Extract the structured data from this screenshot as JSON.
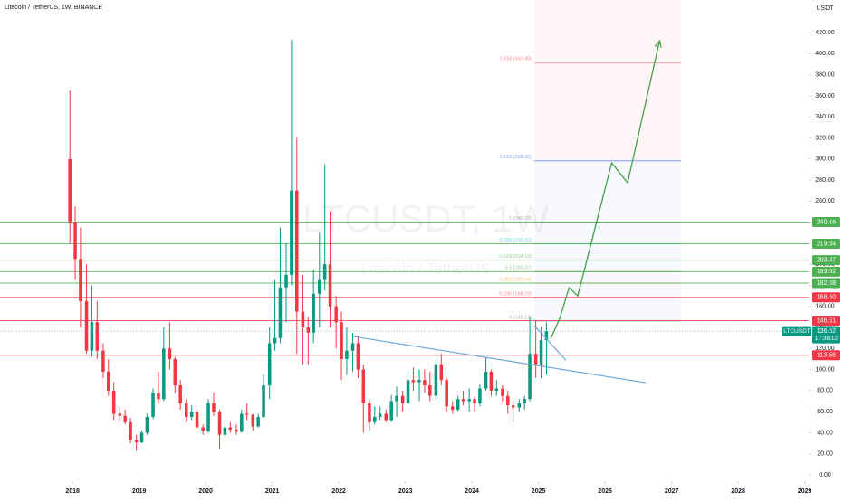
{
  "chart_data": {
    "type": "candlestick",
    "title": "Litecoin / TetherUS, 1W, BINANCE",
    "currency": "USDT",
    "watermark": "LTCUSDT, 1W",
    "watermark_subtitle": "Litecoin / TetherUS",
    "up_color": "#089981",
    "down_color": "#f23645",
    "x": [
      2017.96,
      2018.04,
      2018.12,
      2018.21,
      2018.29,
      2018.37,
      2018.46,
      2018.54,
      2018.62,
      2018.71,
      2018.79,
      2018.87,
      2018.96,
      2019.04,
      2019.12,
      2019.21,
      2019.29,
      2019.37,
      2019.46,
      2019.54,
      2019.62,
      2019.71,
      2019.79,
      2019.87,
      2019.96,
      2020.04,
      2020.12,
      2020.21,
      2020.29,
      2020.37,
      2020.46,
      2020.54,
      2020.62,
      2020.71,
      2020.79,
      2020.87,
      2020.96,
      2021.04,
      2021.12,
      2021.21,
      2021.29,
      2021.37,
      2021.46,
      2021.54,
      2021.62,
      2021.71,
      2021.79,
      2021.87,
      2021.96,
      2022.04,
      2022.12,
      2022.21,
      2022.29,
      2022.37,
      2022.46,
      2022.54,
      2022.62,
      2022.71,
      2022.79,
      2022.87,
      2022.96,
      2023.04,
      2023.12,
      2023.21,
      2023.29,
      2023.37,
      2023.46,
      2023.54,
      2023.62,
      2023.71,
      2023.79,
      2023.87,
      2023.96,
      2024.04,
      2024.12,
      2024.21,
      2024.29,
      2024.37,
      2024.46,
      2024.54,
      2024.62,
      2024.71,
      2024.79,
      2024.87,
      2024.96,
      2025.04,
      2025.12
    ],
    "open": [
      300,
      240,
      205,
      165,
      118,
      145,
      118,
      98,
      80,
      58,
      56,
      50,
      33,
      31,
      40,
      55,
      78,
      72,
      120,
      110,
      85,
      68,
      55,
      60,
      45,
      42,
      68,
      60,
      38,
      45,
      43,
      41,
      58,
      57,
      46,
      55,
      85,
      125,
      130,
      178,
      190,
      270,
      155,
      140,
      135,
      172,
      185,
      200,
      160,
      145,
      110,
      118,
      125,
      100,
      68,
      50,
      55,
      58,
      52,
      70,
      75,
      68,
      90,
      88,
      90,
      85,
      75,
      105,
      90,
      65,
      62,
      72,
      70,
      72,
      68,
      82,
      98,
      80,
      82,
      75,
      66,
      64,
      68,
      72,
      115,
      105,
      128
    ],
    "high": [
      365,
      255,
      235,
      200,
      180,
      165,
      125,
      110,
      88,
      65,
      62,
      54,
      38,
      42,
      58,
      82,
      98,
      140,
      145,
      112,
      90,
      72,
      66,
      62,
      48,
      72,
      78,
      62,
      52,
      50,
      48,
      62,
      68,
      58,
      58,
      95,
      140,
      185,
      235,
      220,
      413,
      320,
      190,
      150,
      195,
      230,
      295,
      250,
      170,
      155,
      140,
      135,
      132,
      105,
      72,
      65,
      65,
      62,
      76,
      84,
      80,
      98,
      102,
      100,
      100,
      98,
      110,
      115,
      92,
      70,
      75,
      80,
      82,
      74,
      86,
      112,
      100,
      90,
      85,
      80,
      70,
      72,
      75,
      150,
      147,
      141,
      145
    ],
    "low": [
      220,
      185,
      140,
      115,
      112,
      110,
      92,
      75,
      52,
      50,
      48,
      30,
      23,
      30,
      38,
      53,
      68,
      70,
      100,
      78,
      62,
      50,
      52,
      40,
      38,
      40,
      56,
      25,
      35,
      40,
      38,
      40,
      52,
      42,
      45,
      54,
      72,
      118,
      125,
      145,
      180,
      115,
      105,
      105,
      125,
      140,
      175,
      140,
      120,
      90,
      95,
      98,
      92,
      40,
      42,
      48,
      52,
      50,
      50,
      55,
      60,
      66,
      80,
      70,
      78,
      70,
      72,
      85,
      60,
      58,
      60,
      66,
      60,
      60,
      65,
      80,
      75,
      75,
      70,
      58,
      50,
      60,
      62,
      70,
      92,
      92,
      95
    ],
    "close": [
      240,
      205,
      165,
      118,
      145,
      118,
      98,
      80,
      58,
      56,
      50,
      33,
      31,
      40,
      55,
      78,
      72,
      120,
      110,
      85,
      68,
      55,
      60,
      45,
      42,
      68,
      60,
      38,
      45,
      43,
      41,
      58,
      57,
      46,
      55,
      85,
      125,
      130,
      178,
      190,
      270,
      155,
      140,
      135,
      172,
      185,
      200,
      160,
      145,
      110,
      118,
      125,
      100,
      68,
      50,
      55,
      58,
      52,
      70,
      75,
      68,
      90,
      88,
      90,
      85,
      75,
      105,
      90,
      65,
      62,
      72,
      70,
      72,
      68,
      82,
      98,
      80,
      82,
      75,
      66,
      64,
      68,
      72,
      115,
      105,
      128,
      136.52
    ],
    "xlim": [
      2016.91,
      2029.06
    ],
    "xticks": [
      2018,
      2019,
      2020,
      2021,
      2022,
      2023,
      2024,
      2025,
      2026,
      2027,
      2028,
      2029
    ],
    "ylim": [
      -6,
      451
    ],
    "yticks": [
      {
        "value": 0,
        "label": "0.00"
      },
      {
        "value": 20,
        "label": "20.00"
      },
      {
        "value": 40,
        "label": "40.00"
      },
      {
        "value": 60,
        "label": "60.00"
      },
      {
        "value": 80,
        "label": "80.00"
      },
      {
        "value": 100,
        "label": "100.00"
      },
      {
        "value": 120,
        "label": "120.00"
      },
      {
        "value": 140,
        "label": "140.00"
      },
      {
        "value": 160,
        "label": "160.00"
      },
      {
        "value": 180,
        "label": "180.00"
      },
      {
        "value": 200,
        "label": "200.00"
      },
      {
        "value": 220,
        "label": "220.00"
      },
      {
        "value": 240,
        "label": "240.00"
      },
      {
        "value": 260,
        "label": "260.00"
      },
      {
        "value": 280,
        "label": "280.00"
      },
      {
        "value": 300,
        "label": "300.00"
      },
      {
        "value": 320,
        "label": "320.00"
      },
      {
        "value": 340,
        "label": "340.00"
      },
      {
        "value": 360,
        "label": "360.00"
      },
      {
        "value": 380,
        "label": "380.00"
      },
      {
        "value": 400,
        "label": "400.00"
      },
      {
        "value": 420,
        "label": "420.00"
      }
    ],
    "levels": [
      {
        "value": 240.16,
        "label": "240.16",
        "color": "#4caf50"
      },
      {
        "value": 219.54,
        "label": "219.54",
        "color": "#4caf50"
      },
      {
        "value": 203.87,
        "label": "203.87",
        "color": "#4caf50"
      },
      {
        "value": 193.02,
        "label": "193.02",
        "color": "#4caf50"
      },
      {
        "value": 182.08,
        "label": "182.08",
        "color": "#4caf50"
      },
      {
        "value": 168.6,
        "label": "168.60",
        "color": "#f23645"
      },
      {
        "value": 146.51,
        "label": "146.51",
        "color": "#f23645"
      },
      {
        "value": 113.58,
        "label": "113.58",
        "color": "#f23645"
      }
    ],
    "fib_start": 2024.94,
    "fib_end": 2027.14,
    "fib_levels": [
      {
        "value": 391.49,
        "label": "2.618 (391.49)",
        "color": "#f23645"
      },
      {
        "value": 298.32,
        "label": "1.618 (298.32)",
        "color": "#2962ff"
      },
      {
        "value": 240.13,
        "label": "1 (240.13)",
        "color": "#787b86"
      },
      {
        "value": 219.43,
        "label": "0.786 (219.43)",
        "color": "#00bcd4"
      },
      {
        "value": 204.18,
        "label": "0.618 (204.18)",
        "color": "#4caf50"
      },
      {
        "value": 193.07,
        "label": "0.5 (193.07)",
        "color": "#4caf50"
      },
      {
        "value": 182.04,
        "label": "0.382 (182.04)",
        "color": "#ff9800"
      },
      {
        "value": 168.19,
        "label": "0.236 (168.19)",
        "color": "#f23645"
      },
      {
        "value": 146.17,
        "label": "0 (146.17)",
        "color": "#787b86"
      }
    ],
    "last_price": {
      "symbol": "LTCUSDT",
      "value": 136.52,
      "label": "136.52",
      "countdown": "17:36:12",
      "color": "#089981"
    },
    "projection": {
      "color": "#43a047",
      "x": [
        2025.18,
        2025.32,
        2025.46,
        2025.59,
        2026.1,
        2026.34,
        2026.82
      ],
      "y": [
        128.8,
        148.6,
        177.8,
        170,
        296.3,
        277.4,
        412.3
      ]
    },
    "trendlines": [
      {
        "color": "#6fa8dc",
        "x": [
          2022.22,
          2026.61
        ],
        "y": [
          131.4,
          87.6
        ]
      },
      {
        "color": "#6fa8dc",
        "x": [
          2024.94,
          2025.41
        ],
        "y": [
          141.7,
          109
        ]
      }
    ]
  }
}
